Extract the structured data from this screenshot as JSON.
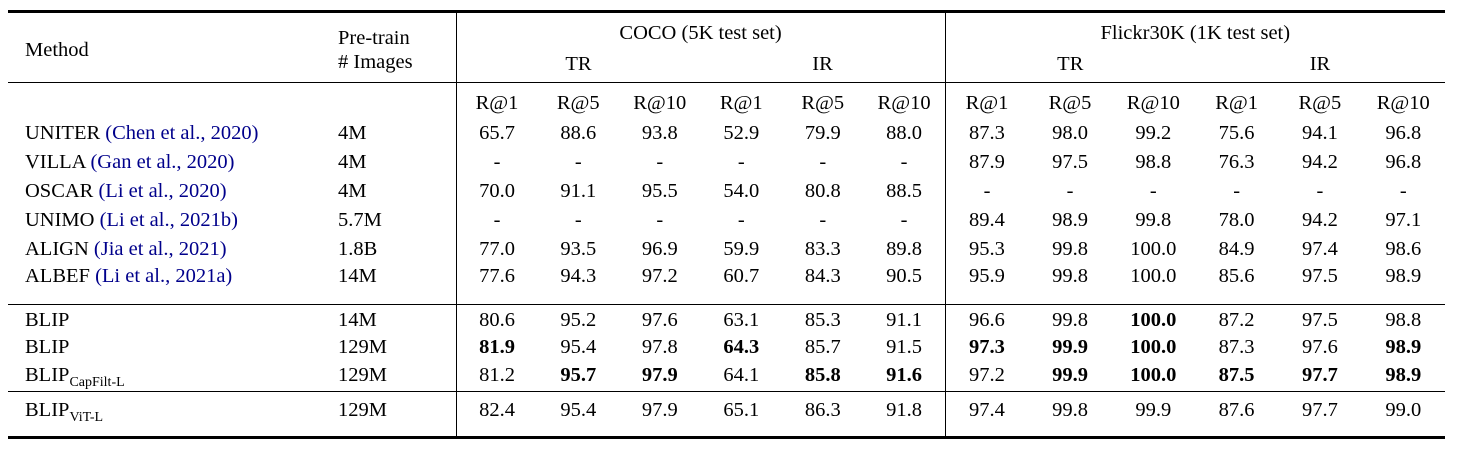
{
  "paper_table": {
    "headers": {
      "method": "Method",
      "pretrain_line1": "Pre-train",
      "pretrain_line2": "# Images",
      "coco": "COCO (5K test set)",
      "flickr": "Flickr30K (1K test set)",
      "tr": "TR",
      "ir": "IR",
      "metrics": [
        "R@1",
        "R@5",
        "R@10",
        "R@1",
        "R@5",
        "R@10",
        "R@1",
        "R@5",
        "R@10",
        "R@1",
        "R@5",
        "R@10"
      ]
    },
    "colors": {
      "text": "#000000",
      "citation": "#00008B",
      "rule": "#000000"
    },
    "groups": [
      {
        "rows": [
          {
            "method": "UNITER",
            "cite": "(Chen et al., 2020)",
            "pretrain": "4M",
            "values": [
              "65.7",
              "88.6",
              "93.8",
              "52.9",
              "79.9",
              "88.0",
              "87.3",
              "98.0",
              "99.2",
              "75.6",
              "94.1",
              "96.8"
            ],
            "bold": []
          },
          {
            "method": "VILLA",
            "cite": "(Gan et al., 2020)",
            "pretrain": "4M",
            "values": [
              "-",
              "-",
              "-",
              "-",
              "-",
              "-",
              "87.9",
              "97.5",
              "98.8",
              "76.3",
              "94.2",
              "96.8"
            ],
            "bold": []
          },
          {
            "method": "OSCAR",
            "cite": "(Li et al., 2020)",
            "pretrain": "4M",
            "values": [
              "70.0",
              "91.1",
              "95.5",
              "54.0",
              "80.8",
              "88.5",
              "-",
              "-",
              "-",
              "-",
              "-",
              "-"
            ],
            "bold": []
          },
          {
            "method": "UNIMO",
            "cite": "(Li et al., 2021b)",
            "pretrain": "5.7M",
            "values": [
              "-",
              "-",
              "-",
              "-",
              "-",
              "-",
              "89.4",
              "98.9",
              "99.8",
              "78.0",
              "94.2",
              "97.1"
            ],
            "bold": []
          },
          {
            "method": "ALIGN",
            "cite": "(Jia et al., 2021)",
            "pretrain": "1.8B",
            "values": [
              "77.0",
              "93.5",
              "96.9",
              "59.9",
              "83.3",
              "89.8",
              "95.3",
              "99.8",
              "100.0",
              "84.9",
              "97.4",
              "98.6"
            ],
            "bold": []
          },
          {
            "method": "ALBEF",
            "cite": "(Li et al., 2021a)",
            "pretrain": "14M",
            "values": [
              "77.6",
              "94.3",
              "97.2",
              "60.7",
              "84.3",
              "90.5",
              "95.9",
              "99.8",
              "100.0",
              "85.6",
              "97.5",
              "98.9"
            ],
            "bold": []
          }
        ]
      },
      {
        "rows": [
          {
            "method": "BLIP",
            "pretrain": "14M",
            "values": [
              "80.6",
              "95.2",
              "97.6",
              "63.1",
              "85.3",
              "91.1",
              "96.6",
              "99.8",
              "100.0",
              "87.2",
              "97.5",
              "98.8"
            ],
            "bold": [
              8
            ]
          },
          {
            "method": "BLIP",
            "pretrain": "129M",
            "values": [
              "81.9",
              "95.4",
              "97.8",
              "64.3",
              "85.7",
              "91.5",
              "97.3",
              "99.9",
              "100.0",
              "87.3",
              "97.6",
              "98.9"
            ],
            "bold": [
              0,
              3,
              6,
              7,
              8,
              11
            ]
          },
          {
            "method": "BLIP",
            "method_sub": "CapFilt-L",
            "pretrain": "129M",
            "values": [
              "81.2",
              "95.7",
              "97.9",
              "64.1",
              "85.8",
              "91.6",
              "97.2",
              "99.9",
              "100.0",
              "87.5",
              "97.7",
              "98.9"
            ],
            "bold": [
              1,
              2,
              4,
              5,
              7,
              8,
              9,
              10,
              11
            ]
          }
        ]
      },
      {
        "rows": [
          {
            "method": "BLIP",
            "method_sub": "ViT-L",
            "pretrain": "129M",
            "values": [
              "82.4",
              "95.4",
              "97.9",
              "65.1",
              "86.3",
              "91.8",
              "97.4",
              "99.8",
              "99.9",
              "87.6",
              "97.7",
              "99.0"
            ],
            "bold": []
          }
        ]
      }
    ]
  }
}
